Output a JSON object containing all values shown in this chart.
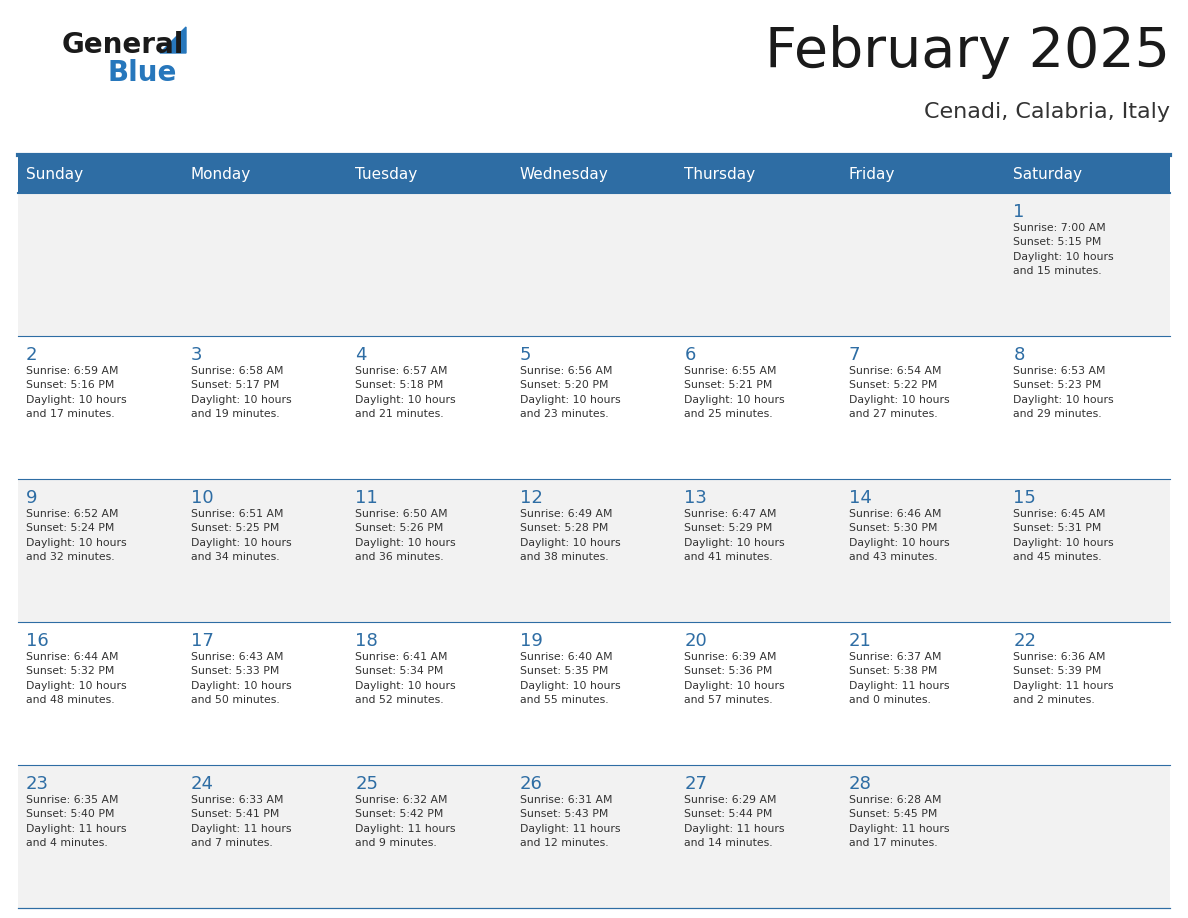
{
  "title": "February 2025",
  "subtitle": "Cenadi, Calabria, Italy",
  "header_bg": "#2E6DA4",
  "header_text_color": "#FFFFFF",
  "cell_bg_alt": "#F2F2F2",
  "cell_bg_white": "#FFFFFF",
  "border_color": "#2E6DA4",
  "day_names": [
    "Sunday",
    "Monday",
    "Tuesday",
    "Wednesday",
    "Thursday",
    "Friday",
    "Saturday"
  ],
  "title_color": "#1a1a1a",
  "subtitle_color": "#333333",
  "number_color": "#2E6DA4",
  "text_color": "#333333",
  "logo_general_color": "#1a1a1a",
  "logo_blue_color": "#2777BC",
  "weeks": [
    [
      {
        "day": null,
        "info": ""
      },
      {
        "day": null,
        "info": ""
      },
      {
        "day": null,
        "info": ""
      },
      {
        "day": null,
        "info": ""
      },
      {
        "day": null,
        "info": ""
      },
      {
        "day": null,
        "info": ""
      },
      {
        "day": 1,
        "info": "Sunrise: 7:00 AM\nSunset: 5:15 PM\nDaylight: 10 hours\nand 15 minutes."
      }
    ],
    [
      {
        "day": 2,
        "info": "Sunrise: 6:59 AM\nSunset: 5:16 PM\nDaylight: 10 hours\nand 17 minutes."
      },
      {
        "day": 3,
        "info": "Sunrise: 6:58 AM\nSunset: 5:17 PM\nDaylight: 10 hours\nand 19 minutes."
      },
      {
        "day": 4,
        "info": "Sunrise: 6:57 AM\nSunset: 5:18 PM\nDaylight: 10 hours\nand 21 minutes."
      },
      {
        "day": 5,
        "info": "Sunrise: 6:56 AM\nSunset: 5:20 PM\nDaylight: 10 hours\nand 23 minutes."
      },
      {
        "day": 6,
        "info": "Sunrise: 6:55 AM\nSunset: 5:21 PM\nDaylight: 10 hours\nand 25 minutes."
      },
      {
        "day": 7,
        "info": "Sunrise: 6:54 AM\nSunset: 5:22 PM\nDaylight: 10 hours\nand 27 minutes."
      },
      {
        "day": 8,
        "info": "Sunrise: 6:53 AM\nSunset: 5:23 PM\nDaylight: 10 hours\nand 29 minutes."
      }
    ],
    [
      {
        "day": 9,
        "info": "Sunrise: 6:52 AM\nSunset: 5:24 PM\nDaylight: 10 hours\nand 32 minutes."
      },
      {
        "day": 10,
        "info": "Sunrise: 6:51 AM\nSunset: 5:25 PM\nDaylight: 10 hours\nand 34 minutes."
      },
      {
        "day": 11,
        "info": "Sunrise: 6:50 AM\nSunset: 5:26 PM\nDaylight: 10 hours\nand 36 minutes."
      },
      {
        "day": 12,
        "info": "Sunrise: 6:49 AM\nSunset: 5:28 PM\nDaylight: 10 hours\nand 38 minutes."
      },
      {
        "day": 13,
        "info": "Sunrise: 6:47 AM\nSunset: 5:29 PM\nDaylight: 10 hours\nand 41 minutes."
      },
      {
        "day": 14,
        "info": "Sunrise: 6:46 AM\nSunset: 5:30 PM\nDaylight: 10 hours\nand 43 minutes."
      },
      {
        "day": 15,
        "info": "Sunrise: 6:45 AM\nSunset: 5:31 PM\nDaylight: 10 hours\nand 45 minutes."
      }
    ],
    [
      {
        "day": 16,
        "info": "Sunrise: 6:44 AM\nSunset: 5:32 PM\nDaylight: 10 hours\nand 48 minutes."
      },
      {
        "day": 17,
        "info": "Sunrise: 6:43 AM\nSunset: 5:33 PM\nDaylight: 10 hours\nand 50 minutes."
      },
      {
        "day": 18,
        "info": "Sunrise: 6:41 AM\nSunset: 5:34 PM\nDaylight: 10 hours\nand 52 minutes."
      },
      {
        "day": 19,
        "info": "Sunrise: 6:40 AM\nSunset: 5:35 PM\nDaylight: 10 hours\nand 55 minutes."
      },
      {
        "day": 20,
        "info": "Sunrise: 6:39 AM\nSunset: 5:36 PM\nDaylight: 10 hours\nand 57 minutes."
      },
      {
        "day": 21,
        "info": "Sunrise: 6:37 AM\nSunset: 5:38 PM\nDaylight: 11 hours\nand 0 minutes."
      },
      {
        "day": 22,
        "info": "Sunrise: 6:36 AM\nSunset: 5:39 PM\nDaylight: 11 hours\nand 2 minutes."
      }
    ],
    [
      {
        "day": 23,
        "info": "Sunrise: 6:35 AM\nSunset: 5:40 PM\nDaylight: 11 hours\nand 4 minutes."
      },
      {
        "day": 24,
        "info": "Sunrise: 6:33 AM\nSunset: 5:41 PM\nDaylight: 11 hours\nand 7 minutes."
      },
      {
        "day": 25,
        "info": "Sunrise: 6:32 AM\nSunset: 5:42 PM\nDaylight: 11 hours\nand 9 minutes."
      },
      {
        "day": 26,
        "info": "Sunrise: 6:31 AM\nSunset: 5:43 PM\nDaylight: 11 hours\nand 12 minutes."
      },
      {
        "day": 27,
        "info": "Sunrise: 6:29 AM\nSunset: 5:44 PM\nDaylight: 11 hours\nand 14 minutes."
      },
      {
        "day": 28,
        "info": "Sunrise: 6:28 AM\nSunset: 5:45 PM\nDaylight: 11 hours\nand 17 minutes."
      },
      {
        "day": null,
        "info": ""
      }
    ]
  ]
}
